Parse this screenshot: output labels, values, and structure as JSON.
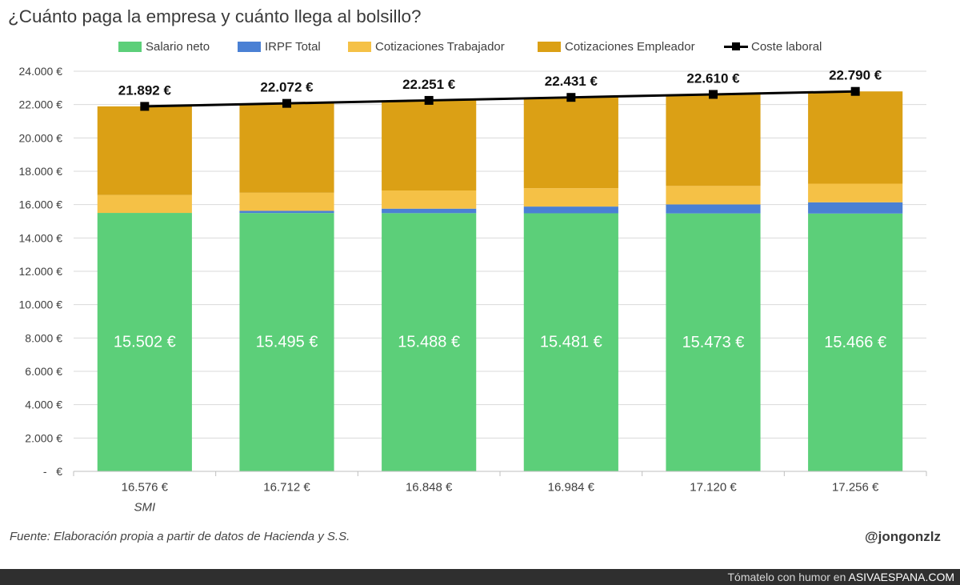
{
  "chart_data": {
    "type": "bar",
    "stacked": true,
    "title": "¿Cuánto paga la empresa y cuánto llega al bolsillo?",
    "categories": [
      "16.576 €",
      "16.712 €",
      "16.848 €",
      "16.984 €",
      "17.120 €",
      "17.256 €"
    ],
    "category_notes": [
      {
        "category_index": 0,
        "text": "SMI"
      }
    ],
    "series": [
      {
        "name": "Salario neto",
        "type": "bar",
        "color": "#5ccf79",
        "values": [
          15502,
          15495,
          15488,
          15481,
          15473,
          15466
        ],
        "data_labels": [
          "15.502 €",
          "15.495 €",
          "15.488 €",
          "15.481 €",
          "15.473 €",
          "15.466 €"
        ]
      },
      {
        "name": "IRPF Total",
        "type": "bar",
        "color": "#4a80d4",
        "values": [
          0,
          134,
          268,
          402,
          538,
          672
        ]
      },
      {
        "name": "Cotizaciones Trabajador",
        "type": "bar",
        "color": "#f5c146",
        "values": [
          1074,
          1083,
          1092,
          1101,
          1109,
          1118
        ]
      },
      {
        "name": "Cotizaciones Empleador",
        "type": "bar",
        "color": "#dba015",
        "values": [
          5316,
          5360,
          5403,
          5447,
          5490,
          5534
        ]
      },
      {
        "name": "Coste laboral",
        "type": "line",
        "marker": "square",
        "color": "#000000",
        "values": [
          21892,
          22072,
          22251,
          22431,
          22610,
          22790
        ],
        "data_labels": [
          "21.892 €",
          "22.072 €",
          "22.251 €",
          "22.431 €",
          "22.610 €",
          "22.790 €"
        ]
      }
    ],
    "ylim": [
      0,
      24000
    ],
    "yticks": [
      0,
      2000,
      4000,
      6000,
      8000,
      10000,
      12000,
      14000,
      16000,
      18000,
      20000,
      22000,
      24000
    ],
    "ytick_labels": [
      "-   €",
      "2.000 €",
      "4.000 €",
      "6.000 €",
      "8.000 €",
      "10.000 €",
      "12.000 €",
      "14.000 €",
      "16.000 €",
      "18.000 €",
      "20.000 €",
      "22.000 €",
      "24.000 €"
    ],
    "grid": true,
    "legend_position": "top"
  },
  "footer": {
    "source": "Fuente: Elaboración propia a partir de datos de Hacienda y S.S.",
    "author": "@jongonzlz"
  },
  "banner": {
    "prefix": "Tómatelo con humor en",
    "site": "ASIVAESPANA.COM"
  }
}
